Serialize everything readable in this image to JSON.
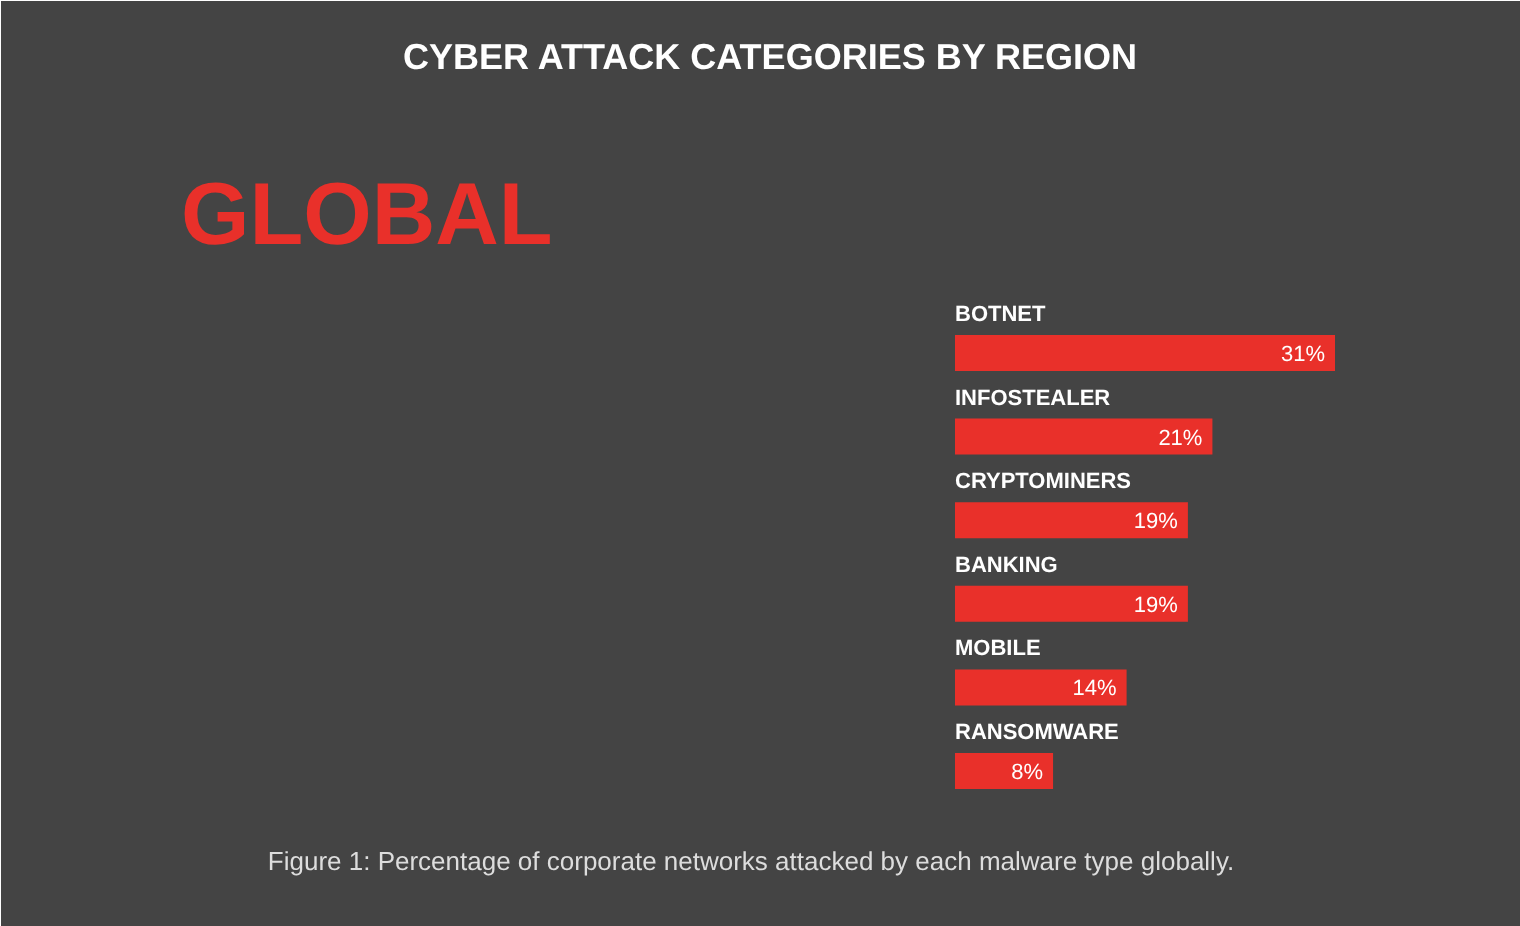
{
  "chart_data": {
    "type": "bar",
    "orientation": "horizontal",
    "title": "CYBER ATTACK CATEGORIES BY REGION",
    "subtitle": "GLOBAL",
    "categories": [
      "BOTNET",
      "INFOSTEALER",
      "CRYPTOMINERS",
      "BANKING",
      "MOBILE",
      "RANSOMWARE"
    ],
    "values": [
      31,
      21,
      19,
      19,
      14,
      8
    ],
    "value_labels": [
      "31%",
      "21%",
      "19%",
      "19%",
      "14%",
      "8%"
    ],
    "color": "#e9302a",
    "annotations": [
      "Figure 1: Percentage of corporate networks attacked by each malware type globally."
    ]
  }
}
